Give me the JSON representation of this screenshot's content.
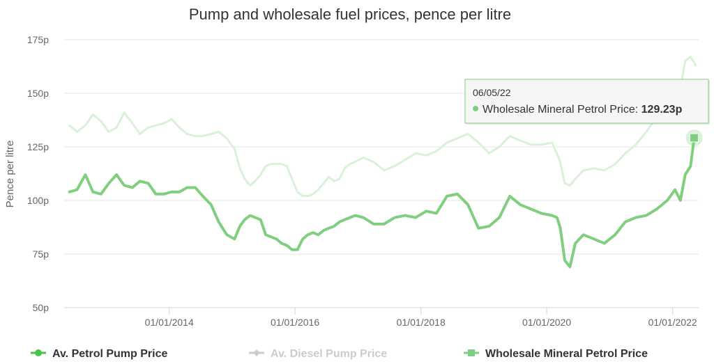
{
  "chart_data": {
    "type": "line",
    "title": "Pump and wholesale fuel prices, pence per litre",
    "ylabel": "Pence per litre",
    "ylim": [
      50,
      175
    ],
    "y_ticks": [
      "50p",
      "75p",
      "100p",
      "125p",
      "150p",
      "175p"
    ],
    "x_ticks": [
      "01/01/2014",
      "01/01/2016",
      "01/01/2018",
      "01/01/2020",
      "01/01/2022"
    ],
    "grid": true,
    "legend_position": "bottom",
    "series": [
      {
        "name": "Av. Petrol Pump Price",
        "color": "#4cc24c",
        "hidden": true,
        "x": [],
        "y": []
      },
      {
        "name": "Av. Diesel Pump Price",
        "color": "#d9f0d9",
        "hidden": false,
        "x": [
          "2012-06-01",
          "2012-07-15",
          "2012-09-01",
          "2012-10-15",
          "2012-12-01",
          "2013-01-15",
          "2013-03-01",
          "2013-04-15",
          "2013-06-01",
          "2013-07-15",
          "2013-09-01",
          "2013-10-15",
          "2013-12-01",
          "2014-01-15",
          "2014-03-01",
          "2014-04-15",
          "2014-06-01",
          "2014-07-15",
          "2014-09-01",
          "2014-10-15",
          "2014-12-01",
          "2015-01-15",
          "2015-02-15",
          "2015-03-15",
          "2015-04-15",
          "2015-05-15",
          "2015-06-15",
          "2015-07-15",
          "2015-08-15",
          "2015-09-15",
          "2015-10-15",
          "2015-11-15",
          "2015-12-15",
          "2016-01-15",
          "2016-02-15",
          "2016-03-15",
          "2016-04-15",
          "2016-05-15",
          "2016-06-15",
          "2016-07-15",
          "2016-08-15",
          "2016-09-15",
          "2016-10-15",
          "2016-11-15",
          "2016-12-15",
          "2017-02-01",
          "2017-04-01",
          "2017-06-01",
          "2017-08-01",
          "2017-10-01",
          "2017-12-01",
          "2018-02-01",
          "2018-04-01",
          "2018-06-01",
          "2018-08-01",
          "2018-10-01",
          "2018-12-01",
          "2019-02-01",
          "2019-04-01",
          "2019-06-01",
          "2019-08-01",
          "2019-10-01",
          "2019-12-01",
          "2020-02-01",
          "2020-03-15",
          "2020-04-15",
          "2020-05-15",
          "2020-06-15",
          "2020-08-01",
          "2020-10-01",
          "2020-12-01",
          "2021-02-01",
          "2021-04-01",
          "2021-06-01",
          "2021-08-01",
          "2021-10-01",
          "2021-12-01",
          "2022-01-15",
          "2022-02-15",
          "2022-03-15",
          "2022-04-15",
          "2022-05-15"
        ],
        "y": [
          135,
          132,
          135,
          140,
          137,
          132,
          134,
          141,
          136,
          131,
          134,
          135,
          136,
          138,
          134,
          131,
          130,
          130,
          131,
          132,
          129,
          124,
          115,
          110,
          107,
          109,
          112,
          116,
          117,
          117,
          117,
          116,
          110,
          104,
          102,
          102,
          103,
          105,
          108,
          111,
          109,
          110,
          115,
          117,
          118,
          120,
          118,
          114,
          116,
          119,
          122,
          121,
          123,
          127,
          129,
          131,
          127,
          122,
          125,
          130,
          128,
          126,
          126,
          127,
          119,
          108,
          107,
          110,
          114,
          115,
          114,
          117,
          122,
          126,
          132,
          139,
          147,
          148,
          152,
          165,
          167,
          163
        ]
      },
      {
        "name": "Wholesale Mineral Petrol Price",
        "color": "#7fcf7f",
        "hidden": false,
        "x": [
          "2012-06-01",
          "2012-07-15",
          "2012-09-01",
          "2012-10-15",
          "2012-12-01",
          "2013-01-15",
          "2013-03-01",
          "2013-04-15",
          "2013-06-01",
          "2013-07-15",
          "2013-09-01",
          "2013-10-15",
          "2013-12-01",
          "2014-01-15",
          "2014-03-01",
          "2014-04-15",
          "2014-06-01",
          "2014-07-15",
          "2014-09-01",
          "2014-10-15",
          "2014-12-01",
          "2015-01-15",
          "2015-02-15",
          "2015-03-15",
          "2015-04-15",
          "2015-05-15",
          "2015-06-15",
          "2015-07-15",
          "2015-08-15",
          "2015-09-15",
          "2015-10-15",
          "2015-11-15",
          "2015-12-15",
          "2016-01-15",
          "2016-02-15",
          "2016-03-15",
          "2016-04-15",
          "2016-05-15",
          "2016-06-15",
          "2016-07-15",
          "2016-08-15",
          "2016-09-15",
          "2016-10-15",
          "2016-11-15",
          "2016-12-15",
          "2017-02-01",
          "2017-04-01",
          "2017-06-01",
          "2017-08-01",
          "2017-10-01",
          "2017-12-01",
          "2018-02-01",
          "2018-04-01",
          "2018-06-01",
          "2018-08-01",
          "2018-10-01",
          "2018-12-01",
          "2019-02-01",
          "2019-04-01",
          "2019-06-01",
          "2019-08-01",
          "2019-10-01",
          "2019-12-01",
          "2020-02-01",
          "2020-03-01",
          "2020-03-20",
          "2020-04-15",
          "2020-05-15",
          "2020-06-15",
          "2020-08-01",
          "2020-10-01",
          "2020-12-01",
          "2021-02-01",
          "2021-04-01",
          "2021-06-01",
          "2021-08-01",
          "2021-10-01",
          "2021-12-01",
          "2022-01-15",
          "2022-02-15",
          "2022-03-15",
          "2022-04-15",
          "2022-05-06"
        ],
        "y": [
          104,
          105,
          112,
          104,
          103,
          108,
          112,
          107,
          106,
          109,
          108,
          103,
          103,
          104,
          104,
          106,
          106,
          102,
          98,
          90,
          84,
          82,
          88,
          91,
          93,
          92,
          91,
          84,
          83,
          82,
          80,
          79,
          77,
          77,
          82,
          84,
          85,
          84,
          86,
          87,
          88,
          90,
          91,
          92,
          93,
          92,
          89,
          89,
          92,
          93,
          92,
          95,
          94,
          102,
          103,
          98,
          87,
          88,
          92,
          102,
          98,
          96,
          94,
          93,
          92,
          87,
          72,
          69,
          80,
          84,
          82,
          80,
          84,
          90,
          92,
          93,
          96,
          100,
          105,
          100,
          112,
          116,
          129.23
        ]
      }
    ],
    "tooltip": {
      "date": "06/05/22",
      "series_name": "Wholesale Mineral Petrol Price",
      "label": "Wholesale Mineral Petrol Price:",
      "value": "129.23p"
    }
  }
}
